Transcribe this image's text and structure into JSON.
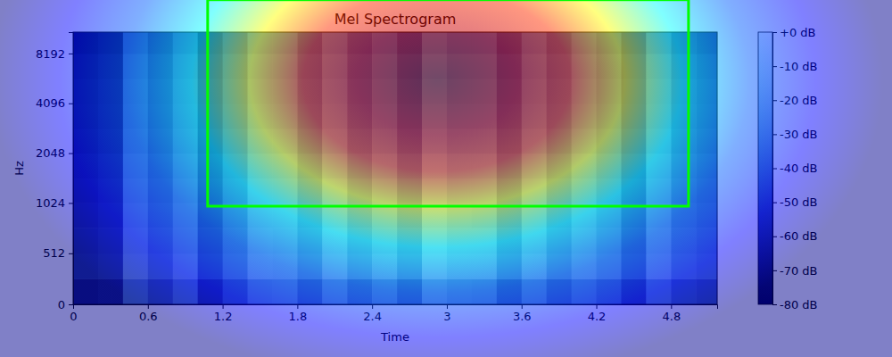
{
  "chart_data": {
    "type": "heatmap",
    "title": "Mel Spectrogram",
    "x_label": "Time",
    "y_label": "Hz",
    "xlim": [
      0,
      5.17
    ],
    "ylim": [
      0,
      11025
    ],
    "xticks": [
      0,
      0.6,
      1.2,
      1.8,
      2.4,
      3,
      3.6,
      4.2,
      4.8
    ],
    "yticks": [
      0,
      512,
      1024,
      2048,
      4096,
      8192
    ],
    "log": "y",
    "x_edges": [
      0,
      0.2,
      0.4,
      0.6,
      0.8,
      1.0,
      1.2,
      1.4,
      1.6,
      1.8,
      2.0,
      2.2,
      2.4,
      2.6,
      2.8,
      3.0,
      3.2,
      3.4,
      3.6,
      3.8,
      4.0,
      4.2,
      4.4,
      4.6,
      4.8,
      5.0,
      5.2
    ],
    "y_edges": [
      0,
      256,
      512,
      768,
      1024,
      1448,
      2048,
      2896,
      4096,
      5793,
      8192,
      11025
    ],
    "cells": [
      [
        -68,
        -65,
        -38,
        -48,
        -37,
        -58,
        -45,
        -33,
        -32,
        -43,
        -31,
        -41,
        -33,
        -43,
        -28,
        -32,
        -33,
        -45,
        -33,
        -43,
        -35,
        -41,
        -53,
        -35,
        -45,
        -48
      ],
      [
        -57,
        -54,
        -27,
        -37,
        -27,
        -47,
        -34,
        -22,
        -23,
        -32,
        -20,
        -30,
        -22,
        -32,
        -17,
        -22,
        -22,
        -34,
        -22,
        -32,
        -24,
        -30,
        -42,
        -24,
        -34,
        -37
      ],
      [
        -59,
        -56,
        -29,
        -39,
        -30,
        -49,
        -36,
        -24,
        -25,
        -34,
        -22,
        -32,
        -25,
        -34,
        -19,
        -24,
        -24,
        -36,
        -25,
        -34,
        -26,
        -32,
        -44,
        -26,
        -36,
        -39
      ],
      [
        -61,
        -58,
        -31,
        -41,
        -31,
        -51,
        -38,
        -26,
        -26,
        -36,
        -24,
        -34,
        -26,
        -36,
        -21,
        -26,
        -27,
        -38,
        -26,
        -36,
        -28,
        -34,
        -46,
        -28,
        -38,
        -41
      ],
      [
        -63,
        -60,
        -33,
        -43,
        -33,
        -53,
        -40,
        -28,
        -28,
        -38,
        -26,
        -36,
        -28,
        -38,
        -23,
        -28,
        -28,
        -40,
        -28,
        -38,
        -30,
        -36,
        -48,
        -30,
        -40,
        -43
      ],
      [
        -65,
        -62,
        -35,
        -45,
        -35,
        -55,
        -42,
        -30,
        -30,
        -40,
        -28,
        -38,
        -30,
        -40,
        -25,
        -30,
        -30,
        -42,
        -30,
        -40,
        -32,
        -38,
        -50,
        -32,
        -42,
        -45
      ],
      [
        -68,
        -65,
        -38,
        -48,
        -38,
        -58,
        -45,
        -33,
        -33,
        -43,
        -31,
        -41,
        -33,
        -43,
        -28,
        -33,
        -33,
        -45,
        -33,
        -43,
        -35,
        -41,
        -53,
        -35,
        -45,
        -48
      ],
      [
        -70,
        -67,
        -40,
        -50,
        -40,
        -60,
        -47,
        -35,
        -35,
        -45,
        -33,
        -43,
        -35,
        -45,
        -30,
        -35,
        -35,
        -47,
        -35,
        -45,
        -37,
        -43,
        -55,
        -37,
        -47,
        -50
      ],
      [
        -71,
        -68,
        -41,
        -51,
        -41,
        -61,
        -48,
        -36,
        -36,
        -46,
        -34,
        -44,
        -36,
        -46,
        -31,
        -36,
        -36,
        -48,
        -36,
        -46,
        -38,
        -44,
        -56,
        -38,
        -48,
        -51
      ],
      [
        -73,
        -70,
        -43,
        -53,
        -43,
        -63,
        -50,
        -38,
        -38,
        -48,
        -36,
        -46,
        -38,
        -48,
        -33,
        -38,
        -38,
        -50,
        -38,
        -48,
        -40,
        -46,
        -58,
        -40,
        -50,
        -53
      ],
      [
        -77,
        -74,
        -47,
        -57,
        -47,
        -67,
        -54,
        -42,
        -42,
        -52,
        -40,
        -50,
        -42,
        -52,
        -37,
        -42,
        -42,
        -54,
        -42,
        -52,
        -44,
        -50,
        -62,
        -44,
        -54,
        -57
      ]
    ],
    "colorbar": {
      "range": [
        -80,
        0
      ],
      "ticks": [
        {
          "value": 0,
          "label": "+0 dB"
        },
        {
          "value": -10,
          "label": "-10 dB"
        },
        {
          "value": -20,
          "label": "-20 dB"
        },
        {
          "value": -30,
          "label": "-30 dB"
        },
        {
          "value": -40,
          "label": "-40 dB"
        },
        {
          "value": -50,
          "label": "-50 dB"
        },
        {
          "value": -60,
          "label": "-60 dB"
        },
        {
          "value": -70,
          "label": "-70 dB"
        },
        {
          "value": -80,
          "label": "-80 dB"
        }
      ]
    },
    "box": {
      "x": [
        1.08,
        4.94
      ],
      "y": [
        985,
        17300
      ]
    }
  }
}
